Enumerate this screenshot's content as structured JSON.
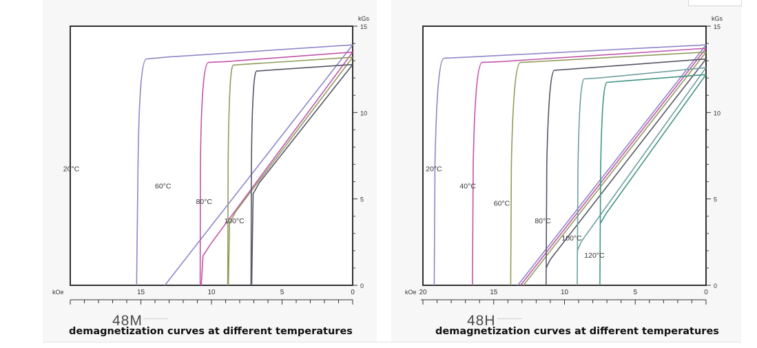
{
  "chart_data": [
    {
      "type": "line",
      "grade": "48M",
      "caption": "demagnetization curves at different temperatures",
      "xlabel": "kOe",
      "ylabel": "kGs",
      "xlim": [
        20,
        0
      ],
      "ylim": [
        0,
        15
      ],
      "x_ticks": [
        15,
        10,
        5,
        0
      ],
      "y_ticks": [
        0,
        5,
        10,
        15
      ],
      "series": [
        {
          "name": "20°C",
          "color": "#8e86c8",
          "label_at": [
            20.5,
            6.6
          ],
          "points": [
            [
              15.3,
              0
            ],
            [
              15.2,
              7
            ],
            [
              15.1,
              12.6
            ],
            [
              14.6,
              13.1
            ],
            [
              13.0,
              13.22
            ],
            [
              0,
              13.92
            ]
          ]
        },
        {
          "name": "60°C",
          "color": "#c054a8",
          "label_at": [
            14.0,
            5.6
          ],
          "points": [
            [
              10.8,
              0
            ],
            [
              10.78,
              7
            ],
            [
              10.7,
              12.6
            ],
            [
              10.2,
              12.9
            ],
            [
              9.0,
              12.95
            ],
            [
              0,
              13.5
            ]
          ]
        },
        {
          "name": "80°C",
          "color": "#8f9c5c",
          "label_at": [
            11.1,
            4.7
          ],
          "points": [
            [
              8.85,
              0
            ],
            [
              8.82,
              7
            ],
            [
              8.75,
              12.5
            ],
            [
              8.45,
              12.75
            ],
            [
              7.5,
              12.8
            ],
            [
              0,
              13.2
            ]
          ]
        },
        {
          "name": "100°C",
          "color": "#555566",
          "label_at": [
            9.1,
            3.6
          ],
          "points": [
            [
              7.2,
              0
            ],
            [
              7.17,
              7
            ],
            [
              7.1,
              12.1
            ],
            [
              6.8,
              12.4
            ],
            [
              6.0,
              12.45
            ],
            [
              0,
              12.78
            ]
          ]
        }
      ],
      "recoil_lines": [
        {
          "color": "#8e86c8",
          "points": [
            [
              13.3,
              0
            ],
            [
              0,
              13.92
            ]
          ]
        },
        {
          "color": "#c054a8",
          "points": [
            [
              10.72,
              0
            ],
            [
              10.6,
              1.7
            ],
            [
              10.05,
              2.4
            ],
            [
              0,
              13.5
            ]
          ]
        },
        {
          "color": "#8f9c5c",
          "points": [
            [
              8.8,
              0
            ],
            [
              8.72,
              3.6
            ],
            [
              8.3,
              4.25
            ],
            [
              0,
              13.2
            ]
          ]
        },
        {
          "color": "#555566",
          "points": [
            [
              7.15,
              0
            ],
            [
              7.05,
              5.3
            ],
            [
              6.6,
              5.95
            ],
            [
              0,
              12.78
            ]
          ]
        }
      ]
    },
    {
      "type": "line",
      "grade": "48H",
      "caption": "demagnetization curves at different temperatures",
      "xlabel": "kOe",
      "ylabel": "kGs",
      "xlim": [
        20,
        0
      ],
      "ylim": [
        0,
        15
      ],
      "x_ticks": [
        20,
        15,
        10,
        5,
        0
      ],
      "y_ticks": [
        0,
        5,
        10,
        15
      ],
      "series": [
        {
          "name": "20°C",
          "color": "#8e86c8",
          "label_at": [
            19.8,
            6.6
          ],
          "points": [
            [
              19.2,
              0
            ],
            [
              19.15,
              7
            ],
            [
              19.0,
              12.8
            ],
            [
              18.5,
              13.15
            ],
            [
              17.0,
              13.2
            ],
            [
              0,
              13.92
            ]
          ]
        },
        {
          "name": "40°C",
          "color": "#c054a8",
          "label_at": [
            17.4,
            5.6
          ],
          "points": [
            [
              16.5,
              0
            ],
            [
              16.45,
              7
            ],
            [
              16.3,
              12.6
            ],
            [
              15.8,
              12.9
            ],
            [
              14.5,
              12.95
            ],
            [
              0,
              13.72
            ]
          ]
        },
        {
          "name": "60°C",
          "color": "#8f9c5c",
          "label_at": [
            15.0,
            4.6
          ],
          "points": [
            [
              13.8,
              0
            ],
            [
              13.75,
              7
            ],
            [
              13.6,
              12.6
            ],
            [
              13.1,
              12.9
            ],
            [
              12.0,
              12.95
            ],
            [
              0,
              13.5
            ]
          ]
        },
        {
          "name": "80°C",
          "color": "#555566",
          "label_at": [
            12.1,
            3.6
          ],
          "points": [
            [
              11.3,
              0
            ],
            [
              11.25,
              7
            ],
            [
              11.1,
              12.1
            ],
            [
              10.7,
              12.45
            ],
            [
              9.8,
              12.5
            ],
            [
              0,
              13.1
            ]
          ]
        },
        {
          "name": "100°C",
          "color": "#6e9f9f",
          "label_at": [
            10.2,
            2.6
          ],
          "points": [
            [
              9.1,
              0
            ],
            [
              9.05,
              6.5
            ],
            [
              8.95,
              11.6
            ],
            [
              8.6,
              11.95
            ],
            [
              7.6,
              12.0
            ],
            [
              0,
              12.6
            ]
          ]
        },
        {
          "name": "120°C",
          "color": "#3f9480",
          "label_at": [
            8.6,
            1.6
          ],
          "points": [
            [
              7.5,
              0
            ],
            [
              7.45,
              6.5
            ],
            [
              7.35,
              11.4
            ],
            [
              7.0,
              11.75
            ],
            [
              6.2,
              11.8
            ],
            [
              0,
              12.2
            ]
          ]
        }
      ],
      "recoil_lines": [
        {
          "color": "#8e86c8",
          "points": [
            [
              13.3,
              0
            ],
            [
              0,
              13.92
            ]
          ]
        },
        {
          "color": "#c054a8",
          "points": [
            [
              13.1,
              0
            ],
            [
              0,
              13.72
            ]
          ]
        },
        {
          "color": "#8f9c5c",
          "points": [
            [
              12.9,
              0
            ],
            [
              0,
              13.5
            ]
          ]
        },
        {
          "color": "#555566",
          "points": [
            [
              11.3,
              1.0
            ],
            [
              11.0,
              1.5
            ],
            [
              0,
              13.1
            ]
          ]
        },
        {
          "color": "#6e9f9f",
          "points": [
            [
              9.1,
              2.0
            ],
            [
              8.8,
              2.55
            ],
            [
              0,
              12.6
            ]
          ]
        },
        {
          "color": "#3f9480",
          "points": [
            [
              7.45,
              3.6
            ],
            [
              7.1,
              4.1
            ],
            [
              0,
              12.2
            ]
          ]
        }
      ]
    }
  ]
}
